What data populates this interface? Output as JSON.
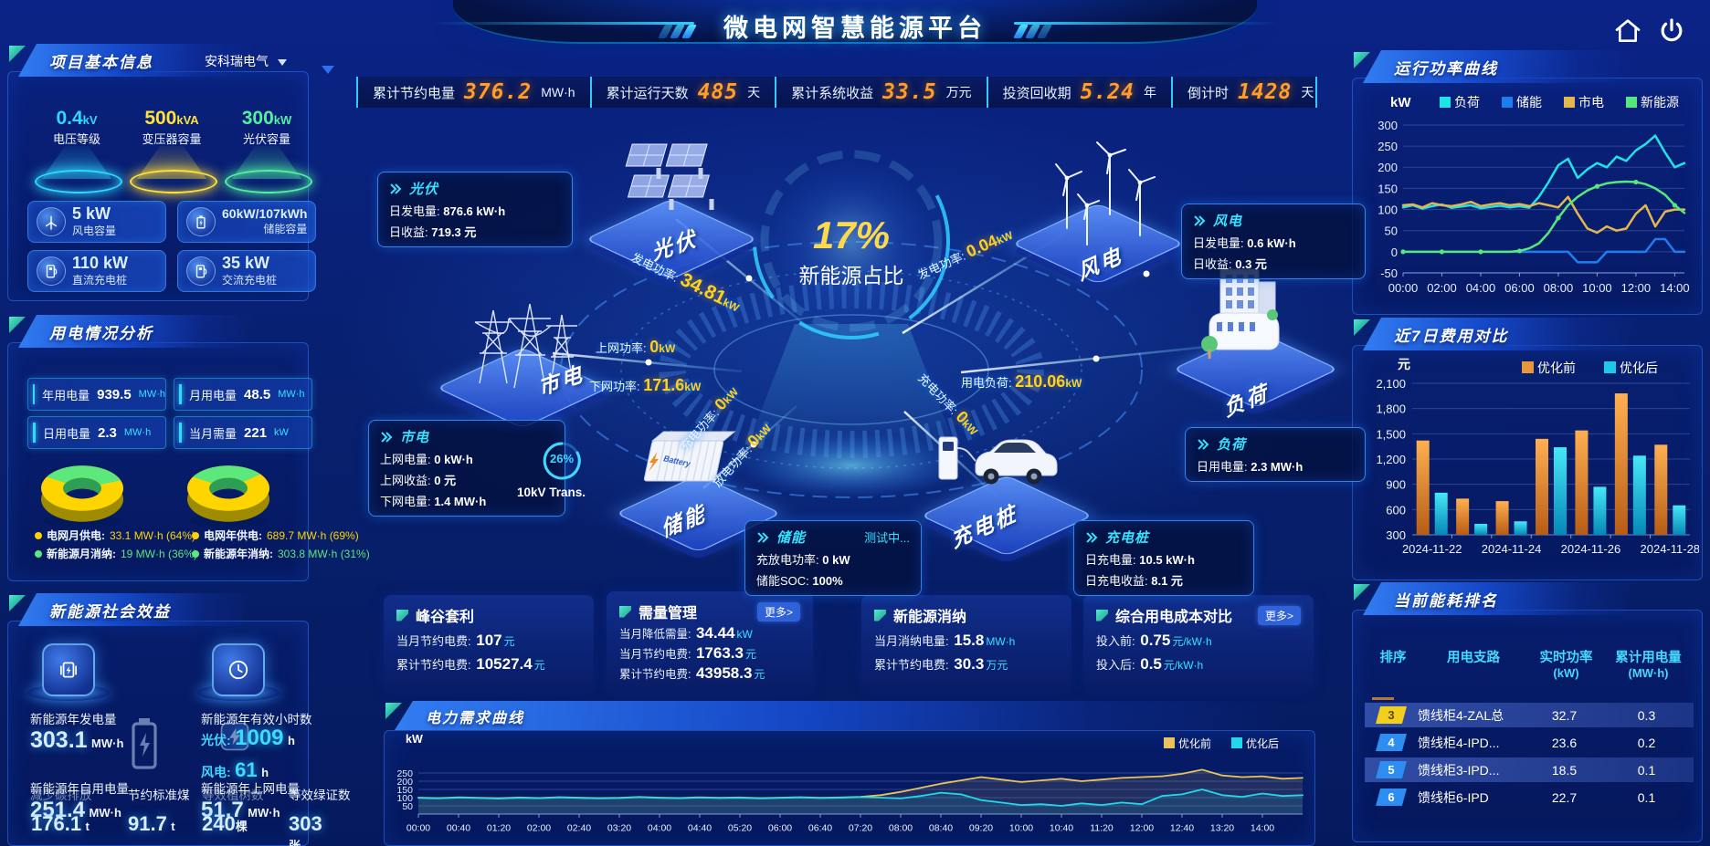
{
  "header": {
    "title": "微电网智慧能源平台"
  },
  "top_stats": {
    "items": [
      {
        "label": "累计节约电量",
        "value": "376.2",
        "unit": "MW·h"
      },
      {
        "label": "累计运行天数",
        "value": "485",
        "unit": "天"
      },
      {
        "label": "累计系统收益",
        "value": "33.5",
        "unit": "万元"
      },
      {
        "label": "投资回收期",
        "value": "5.24",
        "unit": "年"
      },
      {
        "label": "倒计时",
        "value": "1428",
        "unit": "天"
      }
    ]
  },
  "project": {
    "title": "项目基本信息",
    "company": "安科瑞电气",
    "pedestals": [
      {
        "value": "0.4",
        "unit": "kV",
        "label": "电压等级",
        "color": "#2fd8ff"
      },
      {
        "value": "500",
        "unit": "kVA",
        "label": "变压器容量",
        "color": "#ffe13a"
      },
      {
        "value": "300",
        "unit": "kW",
        "label": "光伏容量",
        "color": "#52f0a0"
      }
    ],
    "cards": [
      {
        "value": "5 kW",
        "label": "风电容量",
        "icon": "wind-turbine-icon"
      },
      {
        "value": "60kW/107kWh",
        "label": "储能容量",
        "icon": "battery-icon"
      },
      {
        "value": "110 kW",
        "label": "直流充电桩",
        "icon": "dc-charger-icon"
      },
      {
        "value": "35 kW",
        "label": "交流充电桩",
        "icon": "ac-charger-icon"
      }
    ]
  },
  "usage": {
    "title": "用电情况分析",
    "stats": [
      {
        "label": "年用电量",
        "value": "939.5",
        "unit": "MW·h"
      },
      {
        "label": "月用电量",
        "value": "48.5",
        "unit": "MW·h"
      },
      {
        "label": "日用电量",
        "value": "2.3",
        "unit": "MW·h"
      },
      {
        "label": "当月需量",
        "value": "221",
        "unit": "kW"
      }
    ],
    "donut_month": {
      "legend": [
        {
          "label": "电网月供电:",
          "value": "33.1 MW·h (64%)"
        },
        {
          "label": "新能源月消纳:",
          "value": "19 MW·h (36%)"
        }
      ]
    },
    "donut_year": {
      "legend": [
        {
          "label": "电网年供电:",
          "value": "689.7 MW·h (69%)"
        },
        {
          "label": "新能源年消纳:",
          "value": "303.8 MW·h (31%)"
        }
      ]
    }
  },
  "social": {
    "title": "新能源社会效益",
    "items": [
      {
        "label": "新能源年发电量",
        "value": "303.1",
        "unit": "MW·h"
      },
      {
        "label": "新能源年有效小时数",
        "rows": [
          {
            "k": "光伏:",
            "v": "1009",
            "u": "h"
          },
          {
            "k": "风电:",
            "v": "61",
            "u": "h"
          }
        ]
      }
    ],
    "bottom": [
      {
        "label": "新能源年自用电量",
        "value": "251.4",
        "unit": "MW·h"
      },
      {
        "label": "新能源年上网电量",
        "value": "51.7",
        "unit": "MW·h"
      },
      {
        "label": "减少碳排放",
        "value": "176.1",
        "unit": "t"
      },
      {
        "label": "节约标准煤",
        "value": "91.7",
        "unit": "t"
      },
      {
        "label": "等效植树数",
        "value": "240",
        "unit": "棵"
      },
      {
        "label": "等效绿证数",
        "value": "303",
        "unit": "张"
      }
    ]
  },
  "center": {
    "orb": {
      "percent": "17%",
      "label": "新能源占比"
    },
    "nodes": [
      {
        "label": "光伏"
      },
      {
        "label": "市电"
      },
      {
        "label": "储能"
      },
      {
        "label": "风电"
      },
      {
        "label": "负荷"
      },
      {
        "label": "充电桩"
      }
    ],
    "boxes": {
      "pv": {
        "title": "光伏",
        "rows": [
          {
            "k": "日发电量:",
            "v": "876.6 kW·h"
          },
          {
            "k": "日收益:",
            "v": "719.3 元"
          }
        ]
      },
      "wind": {
        "title": "风电",
        "rows": [
          {
            "k": "日发电量:",
            "v": "0.6 kW·h"
          },
          {
            "k": "日收益:",
            "v": "0.3 元"
          }
        ]
      },
      "grid": {
        "title": "市电",
        "rows": [
          {
            "k": "上网电量:",
            "v": "0 kW·h"
          },
          {
            "k": "上网收益:",
            "v": "0 元"
          },
          {
            "k": "下网电量:",
            "v": "1.4 MW·h"
          }
        ]
      },
      "storage": {
        "title": "储能",
        "status": "测试中...",
        "rows": [
          {
            "k": "充放电功率:",
            "v": "0 kW"
          },
          {
            "k": "储能SOC:",
            "v": "100%"
          }
        ]
      },
      "charger": {
        "title": "充电桩",
        "rows": [
          {
            "k": "日充电量:",
            "v": "10.5 kW·h"
          },
          {
            "k": "日充电收益:",
            "v": "8.1 元"
          }
        ]
      },
      "load": {
        "title": "负荷",
        "rows": [
          {
            "k": "日用电量:",
            "v": "2.3 MW·h"
          }
        ]
      }
    },
    "flows": [
      {
        "label": "发电功率:",
        "value": "34.81",
        "unit": "kW"
      },
      {
        "label": "上网功率:",
        "value": "0",
        "unit": "kW"
      },
      {
        "label": "下网功率:",
        "value": "171.6",
        "unit": "kW"
      },
      {
        "label": "发电功率:",
        "value": "0.04",
        "unit": "kW"
      },
      {
        "label": "用电负荷:",
        "value": "210.06",
        "unit": "kW"
      },
      {
        "label": "充电功率:",
        "value": "0",
        "unit": "kW"
      },
      {
        "label": "放电功率:",
        "value": "0",
        "unit": "kW"
      },
      {
        "label": "充电功率:",
        "value": "0",
        "unit": "kW"
      }
    ],
    "transformer": {
      "percent": "26%",
      "label": "10kV Trans."
    }
  },
  "benefits": [
    {
      "title": "峰谷套利",
      "rows": [
        {
          "k": "当月节约电费:",
          "v": "107",
          "u": "元"
        },
        {
          "k": "累计节约电费:",
          "v": "10527.4",
          "u": "元"
        }
      ]
    },
    {
      "title": "需量管理",
      "more": "更多>",
      "rows": [
        {
          "k": "当月降低需量:",
          "v": "34.44",
          "u": "kW"
        },
        {
          "k": "当月节约电费:",
          "v": "1763.3",
          "u": "元"
        },
        {
          "k": "累计节约电费:",
          "v": "43958.3",
          "u": "元"
        }
      ]
    },
    {
      "title": "新能源消纳",
      "rows": [
        {
          "k": "当月消纳电量:",
          "v": "15.8",
          "u": "MW·h"
        },
        {
          "k": "累计节约电费:",
          "v": "30.3",
          "u": "万元"
        }
      ]
    },
    {
      "title": "综合用电成本对比",
      "more": "更多>",
      "rows": [
        {
          "k": "投入前:",
          "v": "0.75",
          "u": "元/kW·h"
        },
        {
          "k": "投入后:",
          "v": "0.5",
          "u": "元/kW·h"
        }
      ]
    }
  ],
  "ranking": {
    "title": "当前能耗排名",
    "headers": [
      "排序",
      "用电支路",
      "实时功率",
      "累计用电量"
    ],
    "header_units": [
      "",
      "",
      "(kW)",
      "(MW·h)"
    ],
    "rows": [
      {
        "rank": "3",
        "branch": "馈线柜4-ZAL总",
        "power": "32.7",
        "energy": "0.3"
      },
      {
        "rank": "4",
        "branch": "馈线柜4-IPD...",
        "power": "23.6",
        "energy": "0.2"
      },
      {
        "rank": "5",
        "branch": "馈线柜3-IPD...",
        "power": "18.5",
        "energy": "0.1"
      },
      {
        "rank": "6",
        "branch": "馈线柜6-IPD",
        "power": "22.7",
        "energy": "0.1"
      }
    ]
  },
  "chart_data": [
    {
      "id": "power-curve",
      "type": "line",
      "title": "运行功率曲线",
      "ylabel": "kW",
      "ylim": [
        -50,
        300
      ],
      "yticks": [
        -50,
        0,
        50,
        100,
        150,
        200,
        250,
        300
      ],
      "x_labels": [
        "00:00",
        "02:00",
        "04:00",
        "06:00",
        "08:00",
        "10:00",
        "12:00",
        "14:00"
      ],
      "legend": [
        "负荷",
        "储能",
        "市电",
        "新能源"
      ],
      "legend_position": "top",
      "series": [
        {
          "name": "负荷",
          "color": "#1fe3e8",
          "values": [
            105,
            110,
            102,
            108,
            112,
            104,
            107,
            110,
            103,
            106,
            109,
            105,
            108,
            104,
            130,
            165,
            205,
            220,
            175,
            195,
            210,
            200,
            225,
            215,
            240,
            255,
            275,
            235,
            200,
            210
          ]
        },
        {
          "name": "储能",
          "color": "#1f7df0",
          "values": [
            0,
            0,
            0,
            0,
            0,
            0,
            0,
            0,
            0,
            0,
            0,
            0,
            0,
            0,
            0,
            0,
            0,
            0,
            -25,
            -25,
            -25,
            0,
            0,
            0,
            0,
            0,
            30,
            30,
            0,
            0
          ]
        },
        {
          "name": "市电",
          "color": "#e2b84e",
          "values": [
            110,
            112,
            105,
            115,
            110,
            108,
            112,
            118,
            108,
            112,
            115,
            110,
            113,
            108,
            115,
            110,
            105,
            130,
            90,
            55,
            45,
            60,
            50,
            55,
            90,
            110,
            60,
            95,
            100,
            100
          ]
        },
        {
          "name": "新能源",
          "color": "#55e87d",
          "values": [
            0,
            0,
            0,
            0,
            0,
            0,
            0,
            0,
            0,
            0,
            0,
            0,
            2,
            8,
            20,
            45,
            80,
            110,
            130,
            145,
            155,
            162,
            165,
            166,
            165,
            160,
            150,
            135,
            110,
            92
          ]
        }
      ]
    },
    {
      "id": "cost-compare",
      "type": "bar",
      "title": "近7日费用对比",
      "ylabel": "元",
      "ylim": [
        300,
        2100
      ],
      "yticks": [
        300,
        600,
        900,
        1200,
        1500,
        1800,
        2100
      ],
      "categories": [
        "2024-11-22",
        "2024-11-23",
        "2024-11-24",
        "2024-11-25",
        "2024-11-26",
        "2024-11-27",
        "2024-11-28"
      ],
      "x_labels": [
        "2024-11-22",
        "2024-11-24",
        "2024-11-26",
        "2024-11-28"
      ],
      "legend": [
        "优化前",
        "优化后"
      ],
      "legend_position": "top-right",
      "series": [
        {
          "name": "优化前",
          "color": "#e8973a",
          "values": [
            1420,
            730,
            700,
            1440,
            1540,
            1980,
            1370
          ]
        },
        {
          "name": "优化后",
          "color": "#1ec8e8",
          "values": [
            800,
            430,
            460,
            1340,
            870,
            1240,
            650
          ]
        }
      ]
    },
    {
      "id": "demand-curve",
      "type": "line",
      "title": "电力需求曲线",
      "ylabel": "kW",
      "ylim": [
        0,
        300
      ],
      "yticks": [
        50,
        100,
        150,
        200,
        250
      ],
      "x_labels": [
        "00:00",
        "00:40",
        "01:20",
        "02:00",
        "02:40",
        "03:20",
        "04:00",
        "04:40",
        "05:20",
        "06:00",
        "06:40",
        "07:20",
        "08:00",
        "08:40",
        "09:20",
        "10:00",
        "10:40",
        "11:20",
        "12:00",
        "12:40",
        "13:20",
        "14:00"
      ],
      "legend": [
        "优化前",
        "优化后"
      ],
      "legend_position": "top-right",
      "series": [
        {
          "name": "优化前",
          "color": "#e8c35a",
          "values": [
            100,
            97,
            102,
            99,
            96,
            101,
            98,
            103,
            100,
            97,
            99,
            104,
            100,
            98,
            102,
            99,
            101,
            97,
            100,
            103,
            99,
            101,
            105,
            115,
            135,
            160,
            185,
            205,
            225,
            210,
            195,
            205,
            215,
            200,
            210,
            220,
            225,
            230,
            245,
            270,
            235,
            225,
            230,
            215,
            220
          ]
        },
        {
          "name": "优化后",
          "color": "#22d8e8",
          "values": [
            98,
            95,
            100,
            97,
            94,
            99,
            96,
            101,
            98,
            95,
            97,
            102,
            98,
            96,
            100,
            97,
            99,
            95,
            98,
            101,
            97,
            99,
            103,
            100,
            95,
            110,
            130,
            120,
            85,
            70,
            55,
            60,
            50,
            65,
            55,
            70,
            60,
            110,
            120,
            150,
            115,
            105,
            125,
            110,
            115
          ]
        }
      ]
    },
    {
      "id": "supply-month",
      "type": "pie",
      "labels": [
        "电网月供电",
        "新能源月消纳"
      ],
      "values": [
        64,
        36
      ],
      "details": [
        "33.1 MW·h",
        "19 MW·h"
      ],
      "colors": [
        "#ffd500",
        "#5ce87a"
      ]
    },
    {
      "id": "supply-year",
      "type": "pie",
      "labels": [
        "电网年供电",
        "新能源年消纳"
      ],
      "values": [
        69,
        31
      ],
      "details": [
        "689.7 MW·h",
        "303.8 MW·h"
      ],
      "colors": [
        "#ffd500",
        "#5ce87a"
      ]
    }
  ]
}
